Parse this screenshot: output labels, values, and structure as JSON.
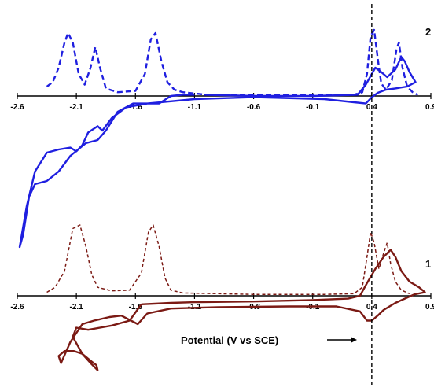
{
  "chart_data": {
    "type": "line",
    "xlabel": "Potential (V vs SCE)",
    "x_ticks": [
      "-2.6",
      "-2.1",
      "-1.6",
      "-1.1",
      "-0.6",
      "-0.1",
      "0.4",
      "0.9"
    ],
    "xlim": [
      -2.6,
      0.9
    ],
    "reference_line_x": 0.4,
    "panels": [
      {
        "label": "2",
        "color": "#1f1fe0",
        "series": [
          {
            "style": "dashed",
            "points": [
              [
                -2.35,
                0.15
              ],
              [
                -2.3,
                0.22
              ],
              [
                -2.25,
                0.45
              ],
              [
                -2.2,
                0.85
              ],
              [
                -2.17,
                1.0
              ],
              [
                -2.13,
                0.85
              ],
              [
                -2.08,
                0.35
              ],
              [
                -2.03,
                0.18
              ],
              [
                -1.98,
                0.45
              ],
              [
                -1.94,
                0.78
              ],
              [
                -1.9,
                0.45
              ],
              [
                -1.85,
                0.12
              ],
              [
                -1.75,
                0.06
              ],
              [
                -1.6,
                0.08
              ],
              [
                -1.52,
                0.35
              ],
              [
                -1.47,
                0.9
              ],
              [
                -1.43,
                1.0
              ],
              [
                -1.38,
                0.55
              ],
              [
                -1.33,
                0.22
              ],
              [
                -1.27,
                0.1
              ],
              [
                -1.2,
                0.06
              ],
              [
                -1.0,
                0.02
              ],
              [
                0.0,
                0.01
              ],
              [
                0.25,
                0.02
              ],
              [
                0.32,
                0.06
              ],
              [
                0.36,
                0.35
              ],
              [
                0.39,
                0.95
              ],
              [
                0.42,
                1.05
              ],
              [
                0.45,
                0.6
              ],
              [
                0.48,
                0.2
              ],
              [
                0.52,
                0.1
              ],
              [
                0.57,
                0.25
              ],
              [
                0.61,
                0.75
              ],
              [
                0.63,
                0.85
              ],
              [
                0.66,
                0.45
              ],
              [
                0.7,
                0.15
              ],
              [
                0.75,
                0.05
              ],
              [
                0.79,
                0.02
              ]
            ]
          },
          {
            "style": "solid",
            "points": [
              [
                -1.02,
                0.02
              ],
              [
                -0.6,
                0.0
              ],
              [
                -0.1,
                0.0
              ],
              [
                0.28,
                0.02
              ],
              [
                0.35,
                0.18
              ],
              [
                0.43,
                0.45
              ],
              [
                0.48,
                0.38
              ],
              [
                0.53,
                0.3
              ],
              [
                0.6,
                0.42
              ],
              [
                0.65,
                0.62
              ],
              [
                0.68,
                0.55
              ],
              [
                0.72,
                0.38
              ],
              [
                0.77,
                0.22
              ],
              [
                0.7,
                0.15
              ],
              [
                0.6,
                0.12
              ],
              [
                0.52,
                0.1
              ],
              [
                0.45,
                0.05
              ],
              [
                0.4,
                -0.02
              ],
              [
                0.35,
                -0.12
              ],
              [
                0.25,
                -0.1
              ],
              [
                0.0,
                -0.05
              ],
              [
                -0.6,
                -0.02
              ],
              [
                -1.1,
                -0.05
              ],
              [
                -1.5,
                -0.12
              ],
              [
                -1.68,
                -0.18
              ],
              [
                -1.8,
                -0.35
              ],
              [
                -1.88,
                -0.55
              ],
              [
                -1.92,
                -0.48
              ],
              [
                -2.0,
                -0.58
              ],
              [
                -2.05,
                -0.78
              ],
              [
                -2.1,
                -0.88
              ],
              [
                -2.15,
                -0.82
              ],
              [
                -2.25,
                -0.85
              ],
              [
                -2.35,
                -0.9
              ],
              [
                -2.45,
                -1.2
              ],
              [
                -2.52,
                -1.75
              ],
              [
                -2.58,
                -2.4
              ],
              [
                -2.55,
                -2.2
              ],
              [
                -2.5,
                -1.6
              ],
              [
                -2.45,
                -1.4
              ],
              [
                -2.35,
                -1.35
              ],
              [
                -2.25,
                -1.2
              ],
              [
                -2.15,
                -0.95
              ],
              [
                -2.02,
                -0.75
              ],
              [
                -1.92,
                -0.7
              ],
              [
                -1.85,
                -0.55
              ],
              [
                -1.75,
                -0.25
              ],
              [
                -1.62,
                -0.12
              ],
              [
                -1.4,
                -0.12
              ],
              [
                -1.3,
                0.0
              ],
              [
                -1.2,
                0.02
              ],
              [
                -1.1,
                0.02
              ]
            ]
          }
        ]
      },
      {
        "label": "1",
        "color": "#7b1a14",
        "series": [
          {
            "style": "dashed",
            "points": [
              [
                -2.35,
                0.05
              ],
              [
                -2.28,
                0.12
              ],
              [
                -2.2,
                0.35
              ],
              [
                -2.13,
                0.95
              ],
              [
                -2.07,
                1.0
              ],
              [
                -2.02,
                0.7
              ],
              [
                -1.97,
                0.3
              ],
              [
                -1.92,
                0.12
              ],
              [
                -1.8,
                0.07
              ],
              [
                -1.65,
                0.08
              ],
              [
                -1.55,
                0.32
              ],
              [
                -1.49,
                0.9
              ],
              [
                -1.45,
                1.0
              ],
              [
                -1.4,
                0.7
              ],
              [
                -1.35,
                0.25
              ],
              [
                -1.3,
                0.08
              ],
              [
                -1.2,
                0.04
              ],
              [
                -0.6,
                0.02
              ],
              [
                0.0,
                0.02
              ],
              [
                0.25,
                0.03
              ],
              [
                0.32,
                0.12
              ],
              [
                0.36,
                0.55
              ],
              [
                0.39,
                0.9
              ],
              [
                0.42,
                0.75
              ],
              [
                0.46,
                0.38
              ],
              [
                0.5,
                0.6
              ],
              [
                0.53,
                0.75
              ],
              [
                0.56,
                0.45
              ],
              [
                0.6,
                0.2
              ],
              [
                0.65,
                0.08
              ],
              [
                0.72,
                0.03
              ]
            ]
          },
          {
            "style": "solid",
            "points": [
              [
                -1.55,
                -0.12
              ],
              [
                -1.3,
                -0.1
              ],
              [
                -1.1,
                -0.09
              ],
              [
                -0.6,
                -0.08
              ],
              [
                -0.1,
                -0.06
              ],
              [
                0.2,
                -0.04
              ],
              [
                0.3,
                0.0
              ],
              [
                0.36,
                0.18
              ],
              [
                0.43,
                0.38
              ],
              [
                0.5,
                0.55
              ],
              [
                0.56,
                0.65
              ],
              [
                0.6,
                0.55
              ],
              [
                0.65,
                0.35
              ],
              [
                0.72,
                0.2
              ],
              [
                0.8,
                0.12
              ],
              [
                0.85,
                0.05
              ],
              [
                0.76,
                0.02
              ],
              [
                0.68,
                -0.04
              ],
              [
                0.6,
                -0.1
              ],
              [
                0.5,
                -0.2
              ],
              [
                0.45,
                -0.28
              ],
              [
                0.4,
                -0.35
              ],
              [
                0.36,
                -0.35
              ],
              [
                0.3,
                -0.22
              ],
              [
                0.1,
                -0.15
              ],
              [
                -0.3,
                -0.15
              ],
              [
                -0.9,
                -0.16
              ],
              [
                -1.3,
                -0.18
              ],
              [
                -1.5,
                -0.25
              ],
              [
                -1.58,
                -0.4
              ],
              [
                -1.72,
                -0.28
              ],
              [
                -1.82,
                -0.3
              ],
              [
                -1.95,
                -0.35
              ],
              [
                -2.05,
                -0.4
              ],
              [
                -2.15,
                -0.65
              ],
              [
                -2.23,
                -0.95
              ],
              [
                -2.25,
                -0.85
              ],
              [
                -2.2,
                -0.78
              ],
              [
                -2.12,
                -0.78
              ],
              [
                -2.05,
                -0.82
              ],
              [
                -1.98,
                -0.95
              ],
              [
                -1.92,
                -1.05
              ],
              [
                -1.93,
                -0.98
              ],
              [
                -1.97,
                -0.93
              ],
              [
                -2.05,
                -0.82
              ],
              [
                -2.13,
                -0.58
              ],
              [
                -2.1,
                -0.45
              ],
              [
                -2.0,
                -0.48
              ],
              [
                -1.9,
                -0.45
              ],
              [
                -1.8,
                -0.42
              ],
              [
                -1.65,
                -0.35
              ],
              [
                -1.55,
                -0.12
              ]
            ]
          }
        ]
      }
    ]
  }
}
